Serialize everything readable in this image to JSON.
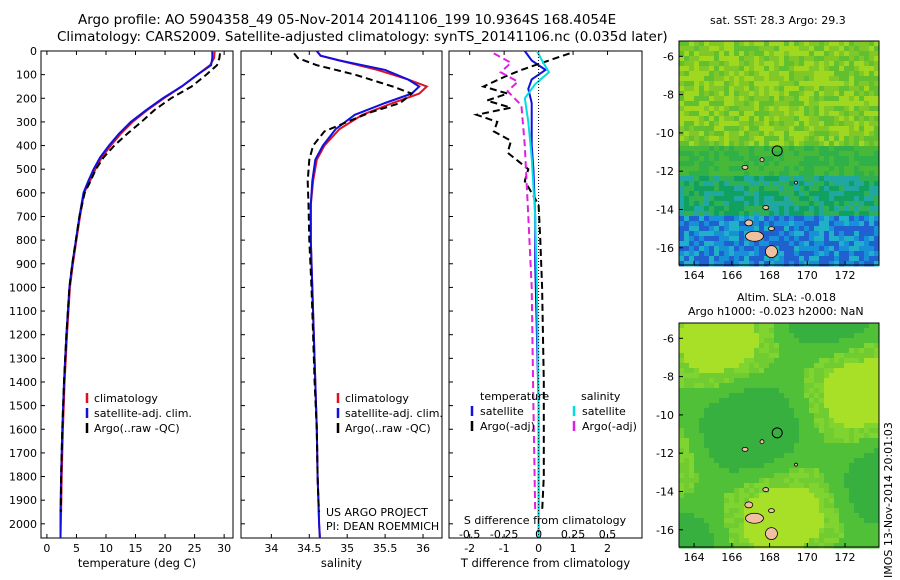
{
  "header": {
    "line1": "Argo profile: AO 5904358_49 05-Nov-2014 20141106_199 10.9364S 168.4054E",
    "line2": "Climatology: CARS2009. Satellite-adjusted climatology: synTS_20141106.nc (0.035d later)"
  },
  "sst_map": {
    "title": "sat. SST: 28.3 Argo: 29.3",
    "xticks": [
      164,
      166,
      168,
      170,
      172
    ],
    "yticks": [
      -6,
      -8,
      -10,
      -12,
      -14,
      -16
    ],
    "xlim": [
      163.2,
      173.8
    ],
    "ylim": [
      -16.9,
      -5.2
    ],
    "argo_position": {
      "lon": 168.4054,
      "lat": -10.9364
    }
  },
  "sla_map": {
    "title_line1": "Altim. SLA: -0.018",
    "title_line2": "Argo h1000: -0.023 h2000: NaN",
    "xticks": [
      164,
      166,
      168,
      170,
      172
    ],
    "yticks": [
      -6,
      -8,
      -10,
      -12,
      -14,
      -16
    ],
    "xlim": [
      163.2,
      173.8
    ],
    "ylim": [
      -16.9,
      -5.2
    ],
    "argo_position": {
      "lon": 168.4054,
      "lat": -10.9364
    }
  },
  "side_stamp": "IMOS 13-Nov-2014 20:01:03",
  "colors": {
    "climatology": "#e01020",
    "satellite": "#1010e0",
    "argo": "#000000",
    "sal_satellite": "#00e0e0",
    "sal_argo": "#e020e0"
  },
  "chart_data": [
    {
      "type": "line",
      "xlabel": "temperature (deg C)",
      "xlim": [
        -1,
        31.5
      ],
      "ylim": [
        0,
        2060
      ],
      "xticks": [
        0,
        5,
        10,
        15,
        20,
        25,
        30
      ],
      "yticks": [
        0,
        100,
        200,
        300,
        400,
        500,
        600,
        700,
        800,
        900,
        1000,
        1100,
        1200,
        1300,
        1400,
        1500,
        1600,
        1700,
        1800,
        1900,
        2000
      ],
      "legend": [
        "climatology",
        "satellite-adj. clim.",
        "Argo(..raw -QC)"
      ],
      "series": [
        {
          "name": "climatology",
          "style": "solid",
          "color": "#e01020",
          "x": [
            28.4,
            28.3,
            27.6,
            25.5,
            22.8,
            19.8,
            17.0,
            14.5,
            12.5,
            10.8,
            9.3,
            8.2,
            7.3,
            6.3,
            5.6,
            5.0,
            4.4,
            3.9,
            3.4,
            3.0,
            2.7,
            2.5,
            2.4,
            2.3
          ],
          "y": [
            0,
            30,
            60,
            100,
            150,
            200,
            250,
            300,
            350,
            400,
            450,
            500,
            550,
            600,
            700,
            800,
            900,
            1000,
            1200,
            1400,
            1600,
            1800,
            1950,
            2060
          ]
        },
        {
          "name": "satellite-adj. clim.",
          "style": "solid",
          "color": "#1010e0",
          "x": [
            28.0,
            28.0,
            27.8,
            25.5,
            22.8,
            19.6,
            16.8,
            14.2,
            12.2,
            10.5,
            9.0,
            7.9,
            7.0,
            6.2,
            5.5,
            4.9,
            4.3,
            3.8,
            3.3,
            2.9,
            2.6,
            2.4,
            2.3,
            2.3
          ],
          "y": [
            0,
            30,
            60,
            100,
            150,
            200,
            250,
            300,
            350,
            400,
            450,
            500,
            550,
            600,
            700,
            800,
            900,
            1000,
            1200,
            1400,
            1600,
            1800,
            1950,
            2060
          ]
        },
        {
          "name": "Argo(..raw -QC)",
          "style": "dash",
          "color": "#000000",
          "x": [
            29.3,
            29.2,
            28.8,
            27.0,
            24.5,
            21.0,
            18.2,
            16.0,
            13.6,
            11.4,
            9.6,
            8.3,
            7.4,
            6.4,
            5.5,
            4.9,
            4.3,
            3.8,
            3.3,
            2.9,
            2.6,
            2.4,
            2.35
          ],
          "y": [
            10,
            30,
            60,
            100,
            150,
            200,
            250,
            300,
            350,
            400,
            450,
            500,
            550,
            600,
            700,
            800,
            900,
            1000,
            1200,
            1400,
            1600,
            1800,
            1950
          ]
        }
      ]
    },
    {
      "type": "line",
      "xlabel": "salinity",
      "xlim": [
        33.6,
        36.25
      ],
      "ylim": [
        0,
        2060
      ],
      "xticks": [
        34,
        34.5,
        35,
        35.5,
        36
      ],
      "legend": [
        "climatology",
        "satellite-adj. clim.",
        "Argo(..raw -QC)"
      ],
      "annotation": [
        "US ARGO PROJECT",
        "PI: DEAN ROEMMICH"
      ],
      "series": [
        {
          "name": "climatology",
          "style": "solid",
          "color": "#e01020",
          "x": [
            34.6,
            34.65,
            34.9,
            35.4,
            35.8,
            36.05,
            35.95,
            35.6,
            35.2,
            34.9,
            34.7,
            34.6,
            34.55,
            34.52,
            34.52,
            34.54,
            34.56,
            34.58,
            34.6,
            34.61,
            34.62,
            34.63,
            34.64
          ],
          "y": [
            0,
            20,
            40,
            80,
            120,
            150,
            180,
            220,
            270,
            330,
            400,
            460,
            550,
            650,
            800,
            1000,
            1200,
            1400,
            1600,
            1800,
            1900,
            2000,
            2060
          ]
        },
        {
          "name": "satellite-adj. clim.",
          "style": "solid",
          "color": "#1010e0",
          "x": [
            34.6,
            34.65,
            34.9,
            35.5,
            35.8,
            35.95,
            35.85,
            35.5,
            35.1,
            34.85,
            34.68,
            34.58,
            34.54,
            34.52,
            34.52,
            34.54,
            34.56,
            34.58,
            34.6,
            34.61,
            34.62,
            34.63,
            34.64
          ],
          "y": [
            0,
            20,
            40,
            80,
            120,
            150,
            180,
            220,
            270,
            330,
            400,
            460,
            550,
            650,
            800,
            1000,
            1200,
            1400,
            1600,
            1800,
            1900,
            2000,
            2060
          ]
        },
        {
          "name": "Argo(..raw -QC)",
          "style": "dash",
          "color": "#000000",
          "x": [
            34.3,
            34.35,
            34.6,
            35.1,
            35.6,
            35.85,
            35.7,
            35.3,
            35.0,
            34.7,
            34.55,
            34.5,
            34.48,
            34.49,
            34.5,
            34.53,
            34.55,
            34.57,
            34.6,
            34.61,
            34.62,
            34.63
          ],
          "y": [
            10,
            30,
            60,
            100,
            150,
            180,
            220,
            260,
            300,
            340,
            400,
            460,
            550,
            650,
            800,
            1000,
            1200,
            1400,
            1600,
            1800,
            1900,
            1950
          ]
        }
      ]
    },
    {
      "type": "line",
      "xlabel": "T difference from climatology",
      "xlabel_top": "S difference from climatology",
      "xlim": [
        -2.6,
        3.0
      ],
      "ylim": [
        0,
        2060
      ],
      "xticks": [
        -2,
        -1,
        0,
        1,
        2
      ],
      "xticks_top": [
        -0.5,
        -0.25,
        0,
        0.25,
        0.5
      ],
      "legend_titles": [
        "temperature",
        "salinity"
      ],
      "legend": [
        "satellite",
        "Argo(-adj)",
        "satellite",
        "Argo(-adj)"
      ],
      "series": [
        {
          "name": "satellite",
          "style": "solid",
          "color": "#1010e0",
          "x": [
            -0.4,
            -0.2,
            0.2,
            -0.2,
            -0.3,
            -0.2,
            -0.2,
            -0.2,
            -0.15,
            -0.1,
            -0.1,
            -0.05,
            0,
            0,
            0
          ],
          "y": [
            0,
            40,
            80,
            120,
            160,
            220,
            300,
            400,
            500,
            700,
            900,
            1200,
            1500,
            1800,
            2060
          ]
        },
        {
          "name": "Argo(-adj)",
          "style": "dash",
          "color": "#000000",
          "x": [
            0.9,
            0.3,
            -0.5,
            -1.0,
            -1.6,
            -0.9,
            -1.5,
            -0.8,
            -1.8,
            -1.2,
            -1.3,
            -0.8,
            -0.9,
            -0.3,
            -0.4,
            0,
            0.05,
            0.1,
            0.15,
            0.15,
            0.1
          ],
          "y": [
            10,
            40,
            80,
            110,
            150,
            180,
            210,
            240,
            270,
            300,
            340,
            380,
            430,
            500,
            550,
            650,
            800,
            1000,
            1400,
            1800,
            1950
          ]
        },
        {
          "name": "satellite",
          "style": "solid",
          "color": "#00e0e0",
          "x": [
            -0.05,
            0.1,
            0.3,
            -0.1,
            -0.4,
            -0.3,
            -0.2,
            -0.1,
            -0.05,
            0,
            0
          ],
          "y": [
            0,
            40,
            90,
            140,
            200,
            300,
            450,
            700,
            1000,
            1500,
            2060
          ]
        },
        {
          "name": "Argo(-adj)",
          "style": "dash",
          "color": "#e020e0",
          "x": [
            -1.3,
            -0.8,
            -1.1,
            -0.6,
            -0.9,
            -0.5,
            -0.4,
            -0.3,
            -0.2,
            -0.15,
            -0.1
          ],
          "y": [
            10,
            50,
            90,
            130,
            170,
            230,
            400,
            700,
            1000,
            1500,
            1950
          ]
        }
      ]
    }
  ]
}
